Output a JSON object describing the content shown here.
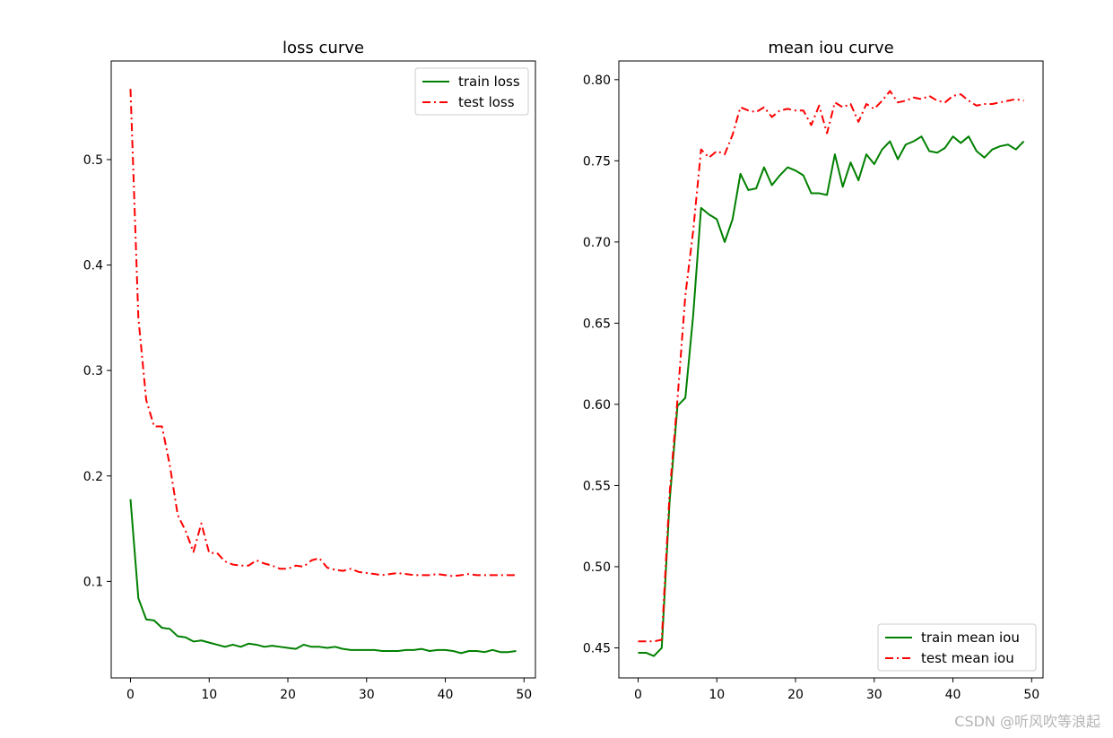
{
  "chart_data": [
    {
      "type": "line",
      "title": "loss curve",
      "xlabel": "",
      "ylabel": "",
      "xlim": [
        -2.45,
        51.45
      ],
      "ylim": [
        0.0085,
        0.5935
      ],
      "xticks": [
        0,
        10,
        20,
        30,
        40,
        50
      ],
      "yticks": [
        0.1,
        0.2,
        0.3,
        0.4,
        0.5
      ],
      "grid": false,
      "legend_position": "top-right",
      "x": [
        0,
        1,
        2,
        3,
        4,
        5,
        6,
        7,
        8,
        9,
        10,
        11,
        12,
        13,
        14,
        15,
        16,
        17,
        18,
        19,
        20,
        21,
        22,
        23,
        24,
        25,
        26,
        27,
        28,
        29,
        30,
        31,
        32,
        33,
        34,
        35,
        36,
        37,
        38,
        39,
        40,
        41,
        42,
        43,
        44,
        45,
        46,
        47,
        48,
        49
      ],
      "series": [
        {
          "name": "train loss",
          "color": "#008000",
          "style": "solid",
          "values": [
            0.178,
            0.084,
            0.064,
            0.063,
            0.056,
            0.055,
            0.048,
            0.047,
            0.043,
            0.044,
            0.042,
            0.04,
            0.038,
            0.04,
            0.038,
            0.041,
            0.04,
            0.038,
            0.039,
            0.038,
            0.037,
            0.036,
            0.04,
            0.038,
            0.038,
            0.037,
            0.038,
            0.036,
            0.035,
            0.035,
            0.035,
            0.035,
            0.034,
            0.034,
            0.034,
            0.035,
            0.035,
            0.036,
            0.034,
            0.035,
            0.035,
            0.034,
            0.032,
            0.034,
            0.034,
            0.033,
            0.035,
            0.033,
            0.033,
            0.034
          ]
        },
        {
          "name": "test loss",
          "color": "#ff0000",
          "style": "dashdot",
          "values": [
            0.567,
            0.35,
            0.272,
            0.247,
            0.247,
            0.21,
            0.163,
            0.148,
            0.128,
            0.155,
            0.127,
            0.127,
            0.119,
            0.116,
            0.115,
            0.115,
            0.12,
            0.117,
            0.115,
            0.112,
            0.112,
            0.115,
            0.114,
            0.12,
            0.122,
            0.113,
            0.111,
            0.11,
            0.112,
            0.109,
            0.108,
            0.107,
            0.106,
            0.107,
            0.108,
            0.107,
            0.106,
            0.106,
            0.106,
            0.107,
            0.106,
            0.105,
            0.106,
            0.107,
            0.106,
            0.106,
            0.106,
            0.106,
            0.106,
            0.106
          ]
        }
      ]
    },
    {
      "type": "line",
      "title": "mean iou curve",
      "xlabel": "",
      "ylabel": "",
      "xlim": [
        -2.45,
        51.45
      ],
      "ylim": [
        0.4315,
        0.8115
      ],
      "xticks": [
        0,
        10,
        20,
        30,
        40,
        50
      ],
      "yticks": [
        0.45,
        0.5,
        0.55,
        0.6,
        0.65,
        0.7,
        0.75,
        0.8
      ],
      "grid": false,
      "legend_position": "bottom-right",
      "x": [
        0,
        1,
        2,
        3,
        4,
        5,
        6,
        7,
        8,
        9,
        10,
        11,
        12,
        13,
        14,
        15,
        16,
        17,
        18,
        19,
        20,
        21,
        22,
        23,
        24,
        25,
        26,
        27,
        28,
        29,
        30,
        31,
        32,
        33,
        34,
        35,
        36,
        37,
        38,
        39,
        40,
        41,
        42,
        43,
        44,
        45,
        46,
        47,
        48,
        49
      ],
      "series": [
        {
          "name": "train mean iou",
          "color": "#008000",
          "style": "solid",
          "values": [
            0.447,
            0.447,
            0.445,
            0.45,
            0.54,
            0.599,
            0.604,
            0.655,
            0.721,
            0.717,
            0.714,
            0.7,
            0.714,
            0.742,
            0.732,
            0.733,
            0.746,
            0.735,
            0.741,
            0.746,
            0.744,
            0.741,
            0.73,
            0.73,
            0.729,
            0.754,
            0.734,
            0.749,
            0.738,
            0.754,
            0.748,
            0.757,
            0.762,
            0.751,
            0.76,
            0.762,
            0.765,
            0.756,
            0.755,
            0.758,
            0.765,
            0.761,
            0.765,
            0.756,
            0.752,
            0.757,
            0.759,
            0.76,
            0.757,
            0.762
          ]
        },
        {
          "name": "test mean iou",
          "color": "#ff0000",
          "style": "dashdot",
          "values": [
            0.454,
            0.454,
            0.454,
            0.455,
            0.545,
            0.603,
            0.667,
            0.707,
            0.757,
            0.752,
            0.756,
            0.754,
            0.766,
            0.783,
            0.781,
            0.78,
            0.783,
            0.777,
            0.781,
            0.782,
            0.781,
            0.781,
            0.772,
            0.784,
            0.767,
            0.786,
            0.783,
            0.785,
            0.774,
            0.785,
            0.782,
            0.787,
            0.793,
            0.786,
            0.787,
            0.789,
            0.788,
            0.79,
            0.787,
            0.786,
            0.79,
            0.791,
            0.787,
            0.784,
            0.785,
            0.785,
            0.786,
            0.787,
            0.788,
            0.787
          ]
        }
      ]
    }
  ],
  "watermark": "CSDN @听风吹等浪起"
}
